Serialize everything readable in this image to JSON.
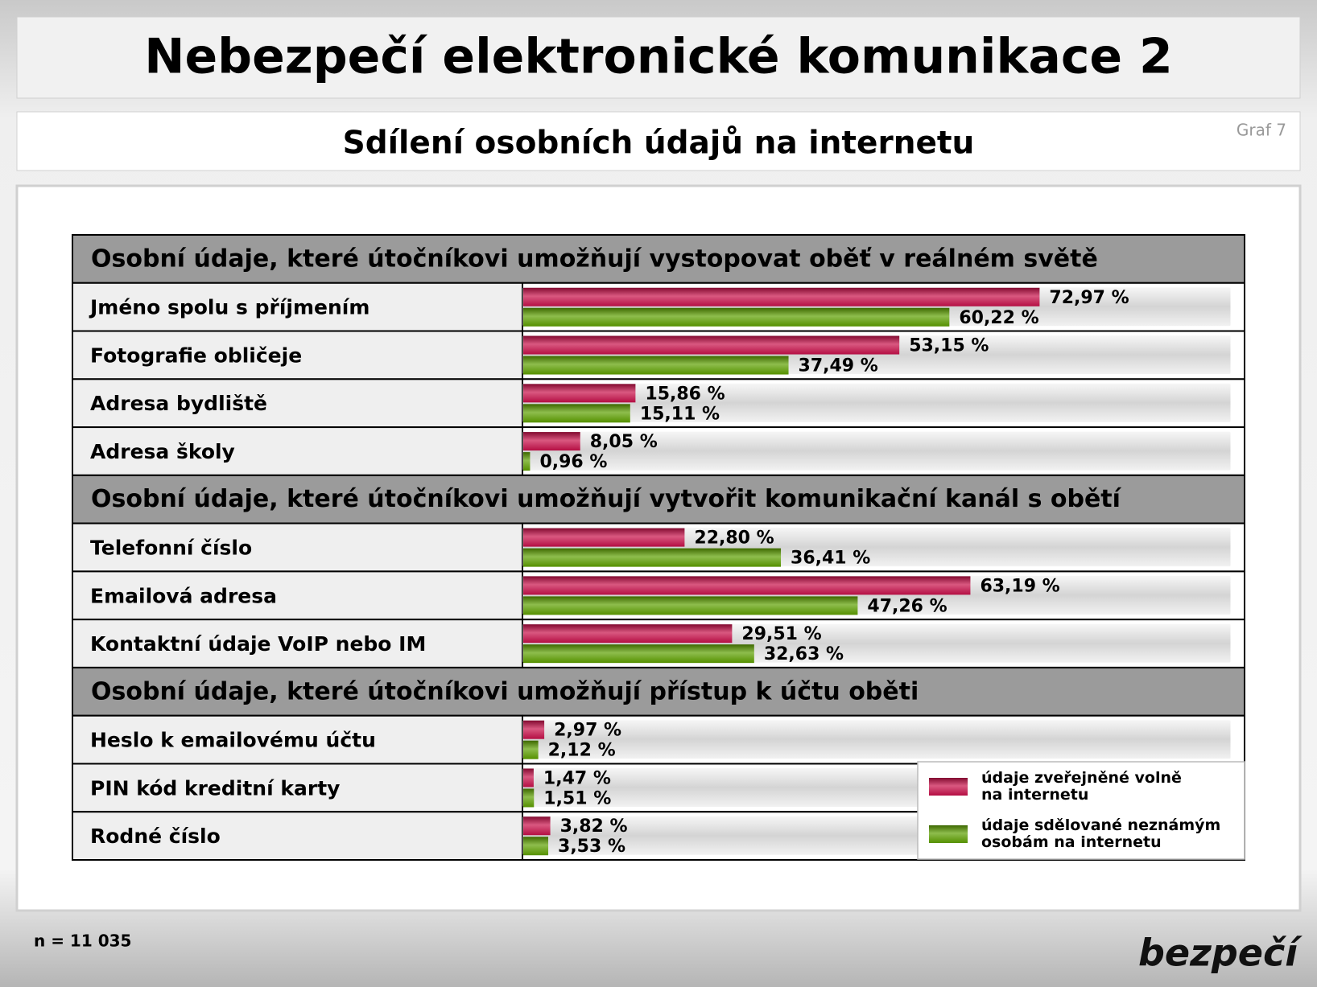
{
  "title": "Nebezpečí elektronické komunikace 2",
  "chart_data": {
    "type": "bar",
    "orientation": "horizontal",
    "title": "Sdílení osobních údajů na internetu",
    "chart_label": "Graf 7",
    "category_groups": [
      {
        "title": "Osobní údaje, které útočníkovi umožňují vystopovat oběť v reálném světě",
        "categories": [
          "Jméno spolu s příjmením",
          "Fotografie obličeje",
          "Adresa bydliště",
          "Adresa školy"
        ]
      },
      {
        "title": "Osobní údaje, které útočníkovi umožňují vytvořit komunikační kanál s obětí",
        "categories": [
          "Telefonní číslo",
          "Emailová adresa",
          "Kontaktní údaje VoIP nebo IM"
        ]
      },
      {
        "title": "Osobní údaje, které útočníkovi umožňují přístup k účtu oběti",
        "categories": [
          "Heslo k emailovému účtu",
          "PIN kód kreditní karty",
          "Rodné číslo"
        ]
      }
    ],
    "series": [
      {
        "name": "údaje zveřejněné volně na internetu",
        "color": "#c8104a",
        "values": [
          72.97,
          53.15,
          15.86,
          8.05,
          22.8,
          63.19,
          29.51,
          2.97,
          1.47,
          3.82
        ],
        "value_labels": [
          "72,97 %",
          "53,15 %",
          "15,86 %",
          "8,05 %",
          "22,80 %",
          "63,19 %",
          "29,51 %",
          "2,97 %",
          "1,47 %",
          "3,82 %"
        ]
      },
      {
        "name": "údaje sdělované neznámým osobám na internetu",
        "color": "#5ea000",
        "values": [
          60.22,
          37.49,
          15.11,
          0.96,
          36.41,
          47.26,
          32.63,
          2.12,
          1.51,
          3.53
        ],
        "value_labels": [
          "60,22 %",
          "37,49 %",
          "15,11 %",
          "0,96 %",
          "36,41 %",
          "47,26 %",
          "32,63 %",
          "2,12 %",
          "1,51 %",
          "3,53 %"
        ]
      }
    ],
    "xlim": [
      0,
      100
    ],
    "legend": "lower right",
    "note": "n = 11 035"
  },
  "logo": "bezpečí"
}
